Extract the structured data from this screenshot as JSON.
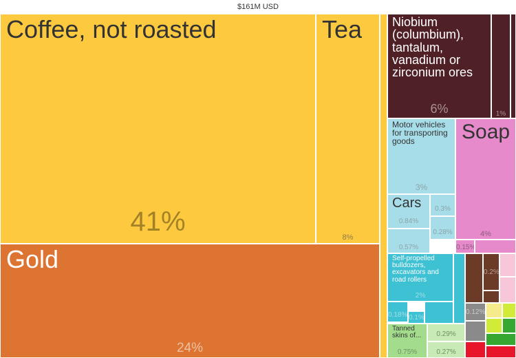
{
  "header": {
    "total": "$161M USD"
  },
  "chart_data": {
    "type": "treemap",
    "title": "$161M USD",
    "palette": {
      "vegetable": "#fdc93e",
      "metals": "#dd7431",
      "minerals": "#4f2025",
      "chemicals": "#e68acb",
      "transport": "#a7dde8",
      "machinery": "#3ec1d3",
      "animal_hides": "#a3dc8d",
      "hides_light": "#c8ebb5",
      "other_brown": "#6b3b27",
      "other_gray": "#8a8a8a",
      "light_pink": "#f7c6d8",
      "yellow_green": "#d2ea38",
      "green": "#36a831",
      "red": "#e8162a",
      "cream": "#f5eb8a"
    },
    "items": [
      {
        "name": "Coffee, not roasted",
        "share": 41,
        "share_label": "41%",
        "category": "vegetable"
      },
      {
        "name": "Gold",
        "share": 24,
        "share_label": "24%",
        "category": "metals"
      },
      {
        "name": "Tea",
        "share": 8,
        "share_label": "8%",
        "category": "vegetable"
      },
      {
        "name": "Niobium (columbium), tantalum, vanadium or zirconium ores",
        "share": 6,
        "share_label": "6%",
        "category": "minerals"
      },
      {
        "name": "",
        "share": 1,
        "share_label": "1%",
        "category": "minerals"
      },
      {
        "name": "Soap",
        "share": 4,
        "share_label": "4%",
        "category": "chemicals"
      },
      {
        "name": "Motor vehicles for transporting goods",
        "share": 3,
        "share_label": "3%",
        "category": "transport"
      },
      {
        "name": "Cars",
        "share": 0.84,
        "share_label": "0.84%",
        "category": "transport"
      },
      {
        "name": "",
        "share": 0.3,
        "share_label": "0.3%",
        "category": "transport"
      },
      {
        "name": "",
        "share": 0.28,
        "share_label": "0.28%",
        "category": "transport"
      },
      {
        "name": "",
        "share": 0.57,
        "share_label": "0.57%",
        "category": "transport"
      },
      {
        "name": "",
        "share": 0.15,
        "share_label": "0.15%",
        "category": "chemicals"
      },
      {
        "name": "Self-propelled bulldozers, excavators and road rollers",
        "share": 2,
        "share_label": "2%",
        "category": "machinery"
      },
      {
        "name": "",
        "share": 0.18,
        "share_label": "0.18%",
        "category": "machinery"
      },
      {
        "name": "",
        "share": 0.1,
        "share_label": "0.1%",
        "category": "machinery"
      },
      {
        "name": "",
        "share": 0.2,
        "share_label": "0.2%",
        "category": "other_brown"
      },
      {
        "name": "",
        "share": 0.12,
        "share_label": "0.12%",
        "category": "other_gray"
      },
      {
        "name": "Tanned skins of...",
        "share": 0.75,
        "share_label": "0.75%",
        "category": "animal_hides"
      },
      {
        "name": "",
        "share": 0.29,
        "share_label": "0.29%",
        "category": "hides_light"
      },
      {
        "name": "",
        "share": 0.27,
        "share_label": "0.27%",
        "category": "hides_light"
      }
    ]
  }
}
